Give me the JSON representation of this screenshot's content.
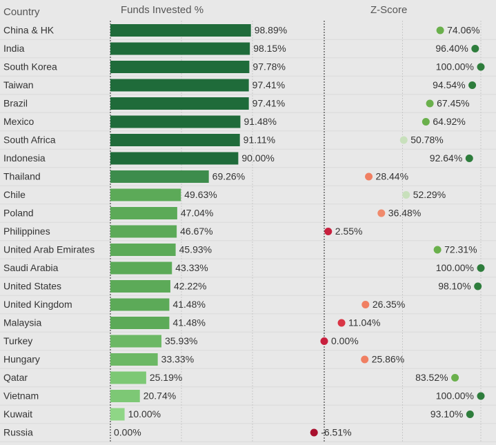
{
  "chart_data": [
    {
      "type": "bar",
      "title": "Funds Invested %",
      "y_label": "Country",
      "categories": [
        "China & HK",
        "India",
        "South Korea",
        "Taiwan",
        "Brazil",
        "Mexico",
        "South Africa",
        "Indonesia",
        "Thailand",
        "Chile",
        "Poland",
        "Philippines",
        "United Arab Emirates",
        "Saudi Arabia",
        "United States",
        "United Kingdom",
        "Malaysia",
        "Turkey",
        "Hungary",
        "Qatar",
        "Vietnam",
        "Kuwait",
        "Russia"
      ],
      "values": [
        98.89,
        98.15,
        97.78,
        97.41,
        97.41,
        91.48,
        91.11,
        90.0,
        69.26,
        49.63,
        47.04,
        46.67,
        45.93,
        43.33,
        42.22,
        41.48,
        41.48,
        35.93,
        33.33,
        25.19,
        20.74,
        10.0,
        0.0
      ],
      "value_labels": [
        "98.89%",
        "98.15%",
        "97.78%",
        "97.41%",
        "97.41%",
        "91.48%",
        "91.11%",
        "90.00%",
        "69.26%",
        "49.63%",
        "47.04%",
        "46.67%",
        "45.93%",
        "43.33%",
        "42.22%",
        "41.48%",
        "41.48%",
        "35.93%",
        "33.33%",
        "25.19%",
        "20.74%",
        "10.00%",
        "0.00%"
      ],
      "colors": [
        "#1f6b3a",
        "#1f6b3a",
        "#1f6b3a",
        "#1f6b3a",
        "#1f6b3a",
        "#1f6b3a",
        "#1f6b3a",
        "#1f6b3a",
        "#3d8c4c",
        "#5caa58",
        "#5caa58",
        "#5caa58",
        "#5caa58",
        "#5caa58",
        "#5caa58",
        "#5caa58",
        "#5caa58",
        "#6cb865",
        "#6cb865",
        "#7dc875",
        "#7dc875",
        "#8fd686",
        "#8fd686"
      ],
      "xlim": [
        0,
        100
      ],
      "xticks": [
        0,
        50,
        100
      ],
      "grid": true
    },
    {
      "type": "dot",
      "title": "Z-Score",
      "values": [
        74.06,
        96.4,
        100.0,
        94.54,
        67.45,
        64.92,
        50.78,
        92.64,
        28.44,
        52.29,
        36.48,
        2.55,
        72.31,
        100.0,
        98.1,
        26.35,
        11.04,
        0.0,
        25.86,
        83.52,
        100.0,
        93.1,
        -6.51
      ],
      "value_labels": [
        "74.06%",
        "96.40%",
        "100.00%",
        "94.54%",
        "67.45%",
        "64.92%",
        "50.78%",
        "92.64%",
        "28.44%",
        "52.29%",
        "36.48%",
        "2.55%",
        "72.31%",
        "100.00%",
        "98.10%",
        "26.35%",
        "11.04%",
        "0.00%",
        "25.86%",
        "83.52%",
        "100.00%",
        "93.10%",
        "-6.51%"
      ],
      "colors": [
        "#6ab04c",
        "#2e7d3c",
        "#2e7d3c",
        "#2e7d3c",
        "#6ab04c",
        "#6ab04c",
        "#c8e0bc",
        "#2e7d3c",
        "#f07f62",
        "#c8e0bc",
        "#f08a6c",
        "#c8203e",
        "#6ab04c",
        "#2e7d3c",
        "#2e7d3c",
        "#f07f62",
        "#d93545",
        "#c8203e",
        "#f07f62",
        "#6ab04c",
        "#2e7d3c",
        "#2e7d3c",
        "#a8102e"
      ],
      "xlim": [
        0,
        100
      ],
      "xticks": [
        0,
        50,
        100
      ],
      "grid": true
    }
  ]
}
